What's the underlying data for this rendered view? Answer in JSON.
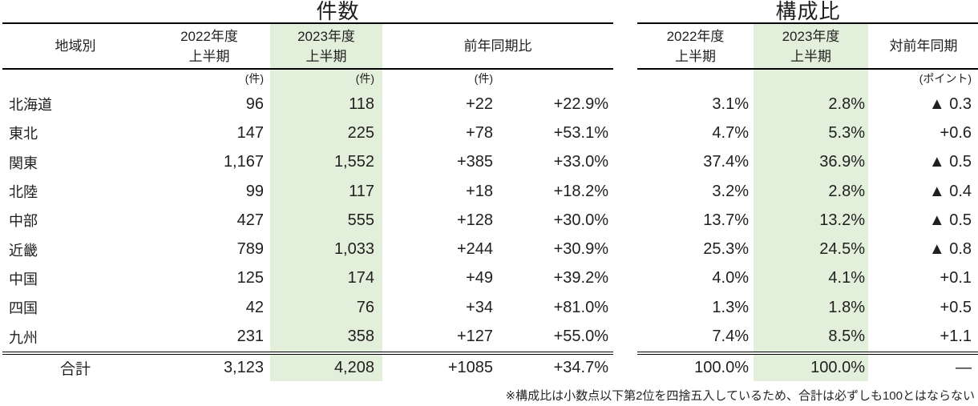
{
  "colors": {
    "highlight_green": "#e2efda",
    "text": "#1f1f1f",
    "rule": "#000000"
  },
  "left_table": {
    "title": "件数",
    "header": {
      "region": "地域別",
      "fy2022_line1": "2022年度",
      "fy2022_line2": "上半期",
      "fy2023_line1": "2023年度",
      "fy2023_line2": "上半期",
      "yoy": "前年同期比"
    },
    "units": {
      "fy2022": "(件)",
      "fy2023": "(件)",
      "diff": "(件)"
    },
    "rows": [
      {
        "region": "北海道",
        "fy2022": "96",
        "fy2023": "118",
        "diff": "+22",
        "pct": "+22.9%"
      },
      {
        "region": "東北",
        "fy2022": "147",
        "fy2023": "225",
        "diff": "+78",
        "pct": "+53.1%"
      },
      {
        "region": "関東",
        "fy2022": "1,167",
        "fy2023": "1,552",
        "diff": "+385",
        "pct": "+33.0%"
      },
      {
        "region": "北陸",
        "fy2022": "99",
        "fy2023": "117",
        "diff": "+18",
        "pct": "+18.2%"
      },
      {
        "region": "中部",
        "fy2022": "427",
        "fy2023": "555",
        "diff": "+128",
        "pct": "+30.0%"
      },
      {
        "region": "近畿",
        "fy2022": "789",
        "fy2023": "1,033",
        "diff": "+244",
        "pct": "+30.9%"
      },
      {
        "region": "中国",
        "fy2022": "125",
        "fy2023": "174",
        "diff": "+49",
        "pct": "+39.2%"
      },
      {
        "region": "四国",
        "fy2022": "42",
        "fy2023": "76",
        "diff": "+34",
        "pct": "+81.0%"
      },
      {
        "region": "九州",
        "fy2022": "231",
        "fy2023": "358",
        "diff": "+127",
        "pct": "+55.0%"
      }
    ],
    "total": {
      "label": "合計",
      "fy2022": "3,123",
      "fy2023": "4,208",
      "diff": "+1085",
      "pct": "+34.7%"
    }
  },
  "right_table": {
    "title": "構成比",
    "header": {
      "fy2022_line1": "2022年度",
      "fy2022_line2": "上半期",
      "fy2023_line1": "2023年度",
      "fy2023_line2": "上半期",
      "change": "対前年同期"
    },
    "units": {
      "change": "(ポイント)"
    },
    "rows": [
      {
        "fy2022": "3.1%",
        "fy2023": "2.8%",
        "change": "▲ 0.3"
      },
      {
        "fy2022": "4.7%",
        "fy2023": "5.3%",
        "change": "+0.6"
      },
      {
        "fy2022": "37.4%",
        "fy2023": "36.9%",
        "change": "▲ 0.5"
      },
      {
        "fy2022": "3.2%",
        "fy2023": "2.8%",
        "change": "▲ 0.4"
      },
      {
        "fy2022": "13.7%",
        "fy2023": "13.2%",
        "change": "▲ 0.5"
      },
      {
        "fy2022": "25.3%",
        "fy2023": "24.5%",
        "change": "▲ 0.8"
      },
      {
        "fy2022": "4.0%",
        "fy2023": "4.1%",
        "change": "+0.1"
      },
      {
        "fy2022": "1.3%",
        "fy2023": "1.8%",
        "change": "+0.5"
      },
      {
        "fy2022": "7.4%",
        "fy2023": "8.5%",
        "change": "+1.1"
      }
    ],
    "total": {
      "fy2022": "100.0%",
      "fy2023": "100.0%",
      "change": "—"
    }
  },
  "footnote": "※構成比は小数点以下第2位を四捨五入しているため、合計は必ずしも100とはならない"
}
